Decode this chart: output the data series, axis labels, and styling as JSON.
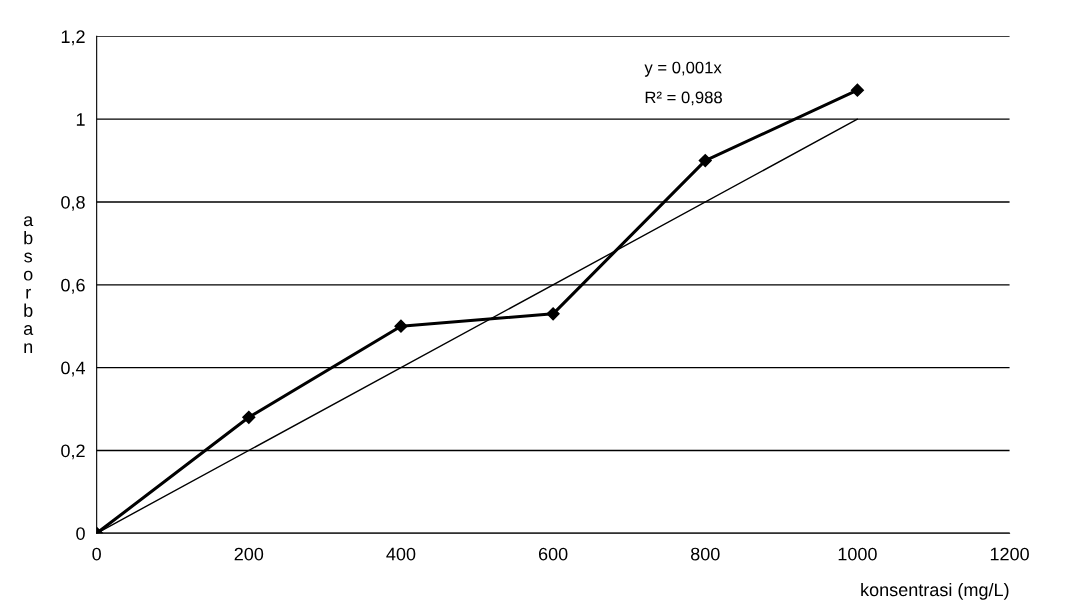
{
  "chart_data": {
    "type": "line",
    "xlabel": "konsentrasi (mg/L)",
    "ylabel": "absorban",
    "x": [
      0,
      200,
      400,
      600,
      800,
      1000
    ],
    "series": [
      {
        "color": "#000000",
        "marker": "diamond",
        "values": [
          0,
          0.28,
          0.5,
          0.53,
          0.9,
          1.07
        ]
      },
      {
        "color": "#000000",
        "marker": "none",
        "x": [
          0,
          1000
        ],
        "values": [
          0,
          1.0
        ]
      }
    ],
    "xlim": [
      0,
      1200
    ],
    "xticks": [
      0,
      200,
      400,
      600,
      800,
      1000,
      1200
    ],
    "ylim": [
      0,
      1.2
    ],
    "yticks": [
      {
        "value": 0,
        "label": "0"
      },
      {
        "value": 0.2,
        "label": "0,2"
      },
      {
        "value": 0.4,
        "label": "0,4"
      },
      {
        "value": 0.6,
        "label": "0,6"
      },
      {
        "value": 0.8,
        "label": "0,8"
      },
      {
        "value": 1,
        "label": "1"
      },
      {
        "value": 1.2,
        "label": "1,2"
      }
    ],
    "grid": "y",
    "annotations": [
      "y = 0,001x",
      "R² = 0,988"
    ]
  }
}
